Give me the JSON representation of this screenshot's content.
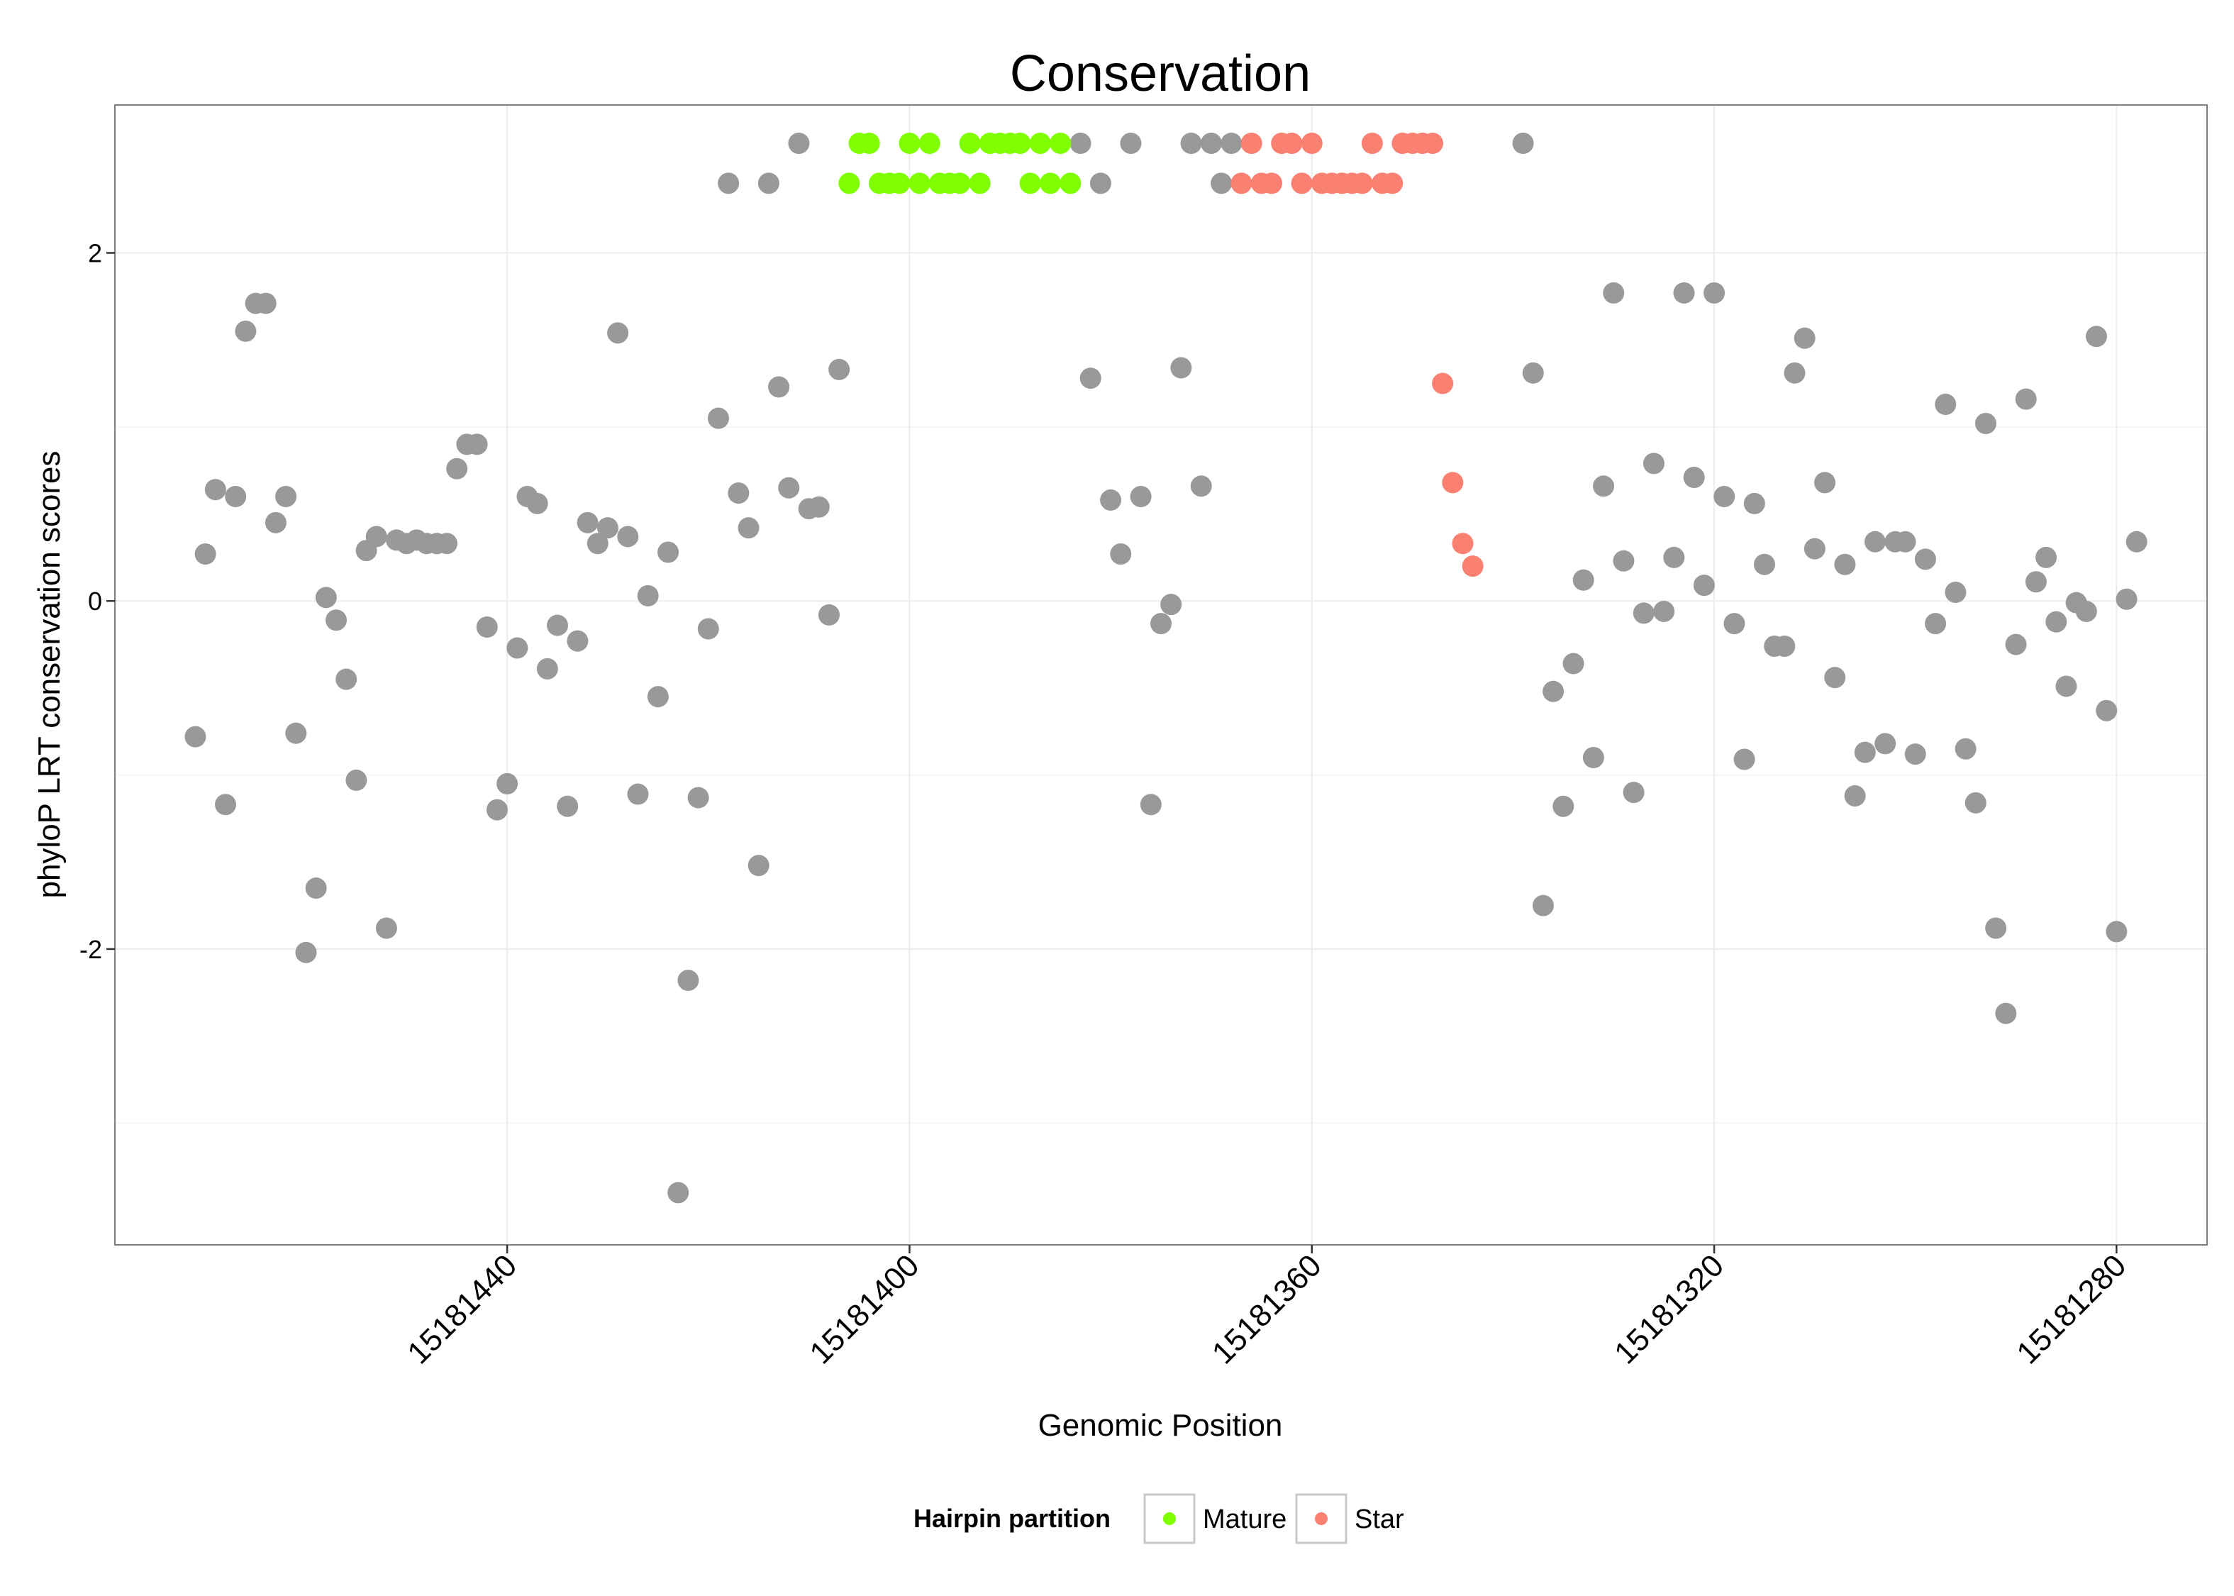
{
  "chart_data": {
    "type": "scatter",
    "title": "Conservation",
    "xlabel": "Genomic Position",
    "ylabel": "phyloP LRT conservation scores",
    "x_reversed": true,
    "xlim": [
      15181271,
      15181479
    ],
    "ylim": [
      -3.7,
      2.85
    ],
    "x_ticks": [
      15181440,
      15181400,
      15181360,
      15181320,
      15181280
    ],
    "x_tick_labels": [
      "15181440",
      "15181400",
      "15181360",
      "15181320",
      "15181280"
    ],
    "y_ticks": [
      -2,
      0,
      2
    ],
    "y_tick_labels": [
      "-2",
      "0",
      "2"
    ],
    "y_minor_gridlines": [
      -3,
      -1,
      1
    ],
    "grid": true,
    "legend": {
      "title": "Hairpin partition",
      "placement": "bottom",
      "entries": [
        {
          "label": "Mature",
          "color": "#7FFF00"
        },
        {
          "label": "Star",
          "color": "#FA8072"
        }
      ]
    },
    "colors": {
      "Other": "#999999",
      "Mature": "#7FFF00",
      "Star": "#FA8072"
    },
    "series": [
      {
        "name": "Other",
        "points": [
          [
            15181471,
            -0.78
          ],
          [
            15181470,
            0.27
          ],
          [
            15181469,
            0.64
          ],
          [
            15181468,
            -1.17
          ],
          [
            15181467,
            0.6
          ],
          [
            15181466,
            1.55
          ],
          [
            15181465,
            1.71
          ],
          [
            15181464,
            1.71
          ],
          [
            15181463,
            0.45
          ],
          [
            15181462,
            0.6
          ],
          [
            15181461,
            -0.76
          ],
          [
            15181460,
            -2.02
          ],
          [
            15181459,
            -1.65
          ],
          [
            15181458,
            0.02
          ],
          [
            15181457,
            -0.11
          ],
          [
            15181456,
            -0.45
          ],
          [
            15181455,
            -1.03
          ],
          [
            15181454,
            0.29
          ],
          [
            15181453,
            0.37
          ],
          [
            15181452,
            -1.88
          ],
          [
            15181451,
            0.35
          ],
          [
            15181450,
            0.33
          ],
          [
            15181449,
            0.35
          ],
          [
            15181448,
            0.33
          ],
          [
            15181447,
            0.33
          ],
          [
            15181446,
            0.33
          ],
          [
            15181445,
            0.76
          ],
          [
            15181444,
            0.9
          ],
          [
            15181443,
            0.9
          ],
          [
            15181442,
            -0.15
          ],
          [
            15181441,
            -1.2
          ],
          [
            15181440,
            -1.05
          ],
          [
            15181439,
            -0.27
          ],
          [
            15181438,
            0.6
          ],
          [
            15181437,
            0.56
          ],
          [
            15181436,
            -0.39
          ],
          [
            15181435,
            -0.14
          ],
          [
            15181434,
            -1.18
          ],
          [
            15181433,
            -0.23
          ],
          [
            15181432,
            0.45
          ],
          [
            15181431,
            0.33
          ],
          [
            15181430,
            0.42
          ],
          [
            15181429,
            1.54
          ],
          [
            15181428,
            0.37
          ],
          [
            15181427,
            -1.11
          ],
          [
            15181426,
            0.03
          ],
          [
            15181425,
            -0.55
          ],
          [
            15181424,
            0.28
          ],
          [
            15181423,
            -3.4
          ],
          [
            15181422,
            -2.18
          ],
          [
            15181421,
            -1.13
          ],
          [
            15181420,
            -0.16
          ],
          [
            15181419,
            1.05
          ],
          [
            15181418,
            2.4
          ],
          [
            15181417,
            0.62
          ],
          [
            15181416,
            0.42
          ],
          [
            15181415,
            -1.52
          ],
          [
            15181414,
            2.4
          ],
          [
            15181413,
            1.23
          ],
          [
            15181412,
            0.65
          ],
          [
            15181411,
            2.63
          ],
          [
            15181410,
            0.53
          ],
          [
            15181409,
            0.54
          ],
          [
            15181408,
            -0.08
          ],
          [
            15181407,
            1.33
          ],
          [
            15181383,
            2.63
          ],
          [
            15181382,
            1.28
          ],
          [
            15181381,
            2.4
          ],
          [
            15181380,
            0.58
          ],
          [
            15181379,
            0.27
          ],
          [
            15181378,
            2.63
          ],
          [
            15181377,
            0.6
          ],
          [
            15181376,
            -1.17
          ],
          [
            15181375,
            -0.13
          ],
          [
            15181374,
            -0.02
          ],
          [
            15181373,
            1.34
          ],
          [
            15181372,
            2.63
          ],
          [
            15181371,
            0.66
          ],
          [
            15181370,
            2.63
          ],
          [
            15181369,
            2.4
          ],
          [
            15181368,
            2.63
          ],
          [
            15181339,
            2.63
          ],
          [
            15181338,
            1.31
          ],
          [
            15181337,
            -1.75
          ],
          [
            15181336,
            -0.52
          ],
          [
            15181335,
            -1.18
          ],
          [
            15181334,
            -0.36
          ],
          [
            15181333,
            0.12
          ],
          [
            15181332,
            -0.9
          ],
          [
            15181331,
            0.66
          ],
          [
            15181330,
            1.77
          ],
          [
            15181329,
            0.23
          ],
          [
            15181328,
            -1.1
          ],
          [
            15181327,
            -0.07
          ],
          [
            15181326,
            0.79
          ],
          [
            15181325,
            -0.06
          ],
          [
            15181324,
            0.25
          ],
          [
            15181323,
            1.77
          ],
          [
            15181322,
            0.71
          ],
          [
            15181321,
            0.09
          ],
          [
            15181320,
            1.77
          ],
          [
            15181319,
            0.6
          ],
          [
            15181318,
            -0.13
          ],
          [
            15181317,
            -0.91
          ],
          [
            15181316,
            0.56
          ],
          [
            15181315,
            0.21
          ],
          [
            15181314,
            -0.26
          ],
          [
            15181313,
            -0.26
          ],
          [
            15181312,
            1.31
          ],
          [
            15181311,
            1.51
          ],
          [
            15181310,
            0.3
          ],
          [
            15181309,
            0.68
          ],
          [
            15181308,
            -0.44
          ],
          [
            15181307,
            0.21
          ],
          [
            15181306,
            -1.12
          ],
          [
            15181305,
            -0.87
          ],
          [
            15181304,
            0.34
          ],
          [
            15181303,
            -0.82
          ],
          [
            15181302,
            0.34
          ],
          [
            15181301,
            0.34
          ],
          [
            15181300,
            -0.88
          ],
          [
            15181299,
            0.24
          ],
          [
            15181298,
            -0.13
          ],
          [
            15181297,
            1.13
          ],
          [
            15181296,
            0.05
          ],
          [
            15181295,
            -0.85
          ],
          [
            15181294,
            -1.16
          ],
          [
            15181293,
            1.02
          ],
          [
            15181292,
            -1.88
          ],
          [
            15181291,
            -2.37
          ],
          [
            15181290,
            -0.25
          ],
          [
            15181289,
            1.16
          ],
          [
            15181288,
            0.11
          ],
          [
            15181287,
            0.25
          ],
          [
            15181286,
            -0.12
          ],
          [
            15181285,
            -0.49
          ],
          [
            15181284,
            -0.01
          ],
          [
            15181283,
            -0.06
          ],
          [
            15181282,
            1.52
          ],
          [
            15181281,
            -0.63
          ],
          [
            15181280,
            -1.9
          ],
          [
            15181279,
            0.01
          ],
          [
            15181278,
            0.34
          ]
        ]
      },
      {
        "name": "Mature",
        "points": [
          [
            15181406,
            2.4
          ],
          [
            15181405,
            2.63
          ],
          [
            15181404,
            2.63
          ],
          [
            15181403,
            2.4
          ],
          [
            15181402,
            2.4
          ],
          [
            15181401,
            2.4
          ],
          [
            15181400,
            2.63
          ],
          [
            15181399,
            2.4
          ],
          [
            15181398,
            2.63
          ],
          [
            15181397,
            2.4
          ],
          [
            15181396,
            2.4
          ],
          [
            15181395,
            2.4
          ],
          [
            15181394,
            2.63
          ],
          [
            15181393,
            2.4
          ],
          [
            15181392,
            2.63
          ],
          [
            15181391,
            2.63
          ],
          [
            15181390,
            2.63
          ],
          [
            15181389,
            2.63
          ],
          [
            15181388,
            2.4
          ],
          [
            15181387,
            2.63
          ],
          [
            15181386,
            2.4
          ],
          [
            15181385,
            2.63
          ],
          [
            15181384,
            2.4
          ]
        ]
      },
      {
        "name": "Star",
        "points": [
          [
            15181367,
            2.4
          ],
          [
            15181366,
            2.63
          ],
          [
            15181365,
            2.4
          ],
          [
            15181364,
            2.4
          ],
          [
            15181363,
            2.63
          ],
          [
            15181362,
            2.63
          ],
          [
            15181361,
            2.4
          ],
          [
            15181360,
            2.63
          ],
          [
            15181359,
            2.4
          ],
          [
            15181358,
            2.4
          ],
          [
            15181357,
            2.4
          ],
          [
            15181356,
            2.4
          ],
          [
            15181355,
            2.4
          ],
          [
            15181354,
            2.63
          ],
          [
            15181353,
            2.4
          ],
          [
            15181352,
            2.4
          ],
          [
            15181351,
            2.63
          ],
          [
            15181350,
            2.63
          ],
          [
            15181349,
            2.63
          ],
          [
            15181348,
            2.63
          ],
          [
            15181347,
            1.25
          ],
          [
            15181346,
            0.68
          ],
          [
            15181345,
            0.33
          ],
          [
            15181344,
            0.2
          ]
        ]
      }
    ]
  }
}
